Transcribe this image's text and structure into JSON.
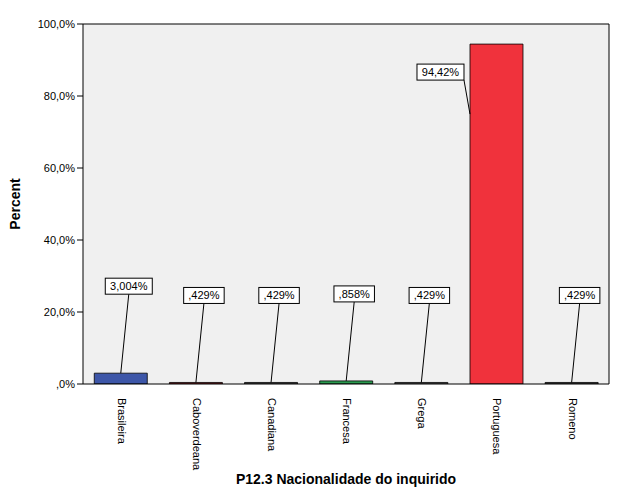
{
  "chart_data": {
    "type": "bar",
    "x_label": "P12.3 Nacionalidade do inquirido",
    "y_label": "Percent",
    "categories": [
      "Brasileira",
      "Caboverdeana",
      "Canadiana",
      "Francesa",
      "Grega",
      "Portuguesa",
      "Romeno"
    ],
    "values": [
      3.004,
      0.429,
      0.429,
      0.858,
      0.429,
      94.42,
      0.429
    ],
    "value_labels": [
      "3,004%",
      ",429%",
      ",429%",
      ",858%",
      ",429%",
      "94,42%",
      ",429%"
    ],
    "colors": [
      "#3d56a8",
      "#a3282d",
      "#5e5e5e",
      "#2a9a4f",
      "#6b6b6b",
      "#f0323c",
      "#4f4f4f"
    ],
    "ylim": [
      0,
      100
    ],
    "yticks": [
      {
        "value": 0,
        "label": ",0%"
      },
      {
        "value": 20,
        "label": "20,0%"
      },
      {
        "value": 40,
        "label": "40,0%"
      },
      {
        "value": 60,
        "label": "60,0%"
      },
      {
        "value": 80,
        "label": "80,0%"
      },
      {
        "value": 100,
        "label": "100,0%"
      }
    ],
    "grid": false,
    "data_labels": true
  }
}
